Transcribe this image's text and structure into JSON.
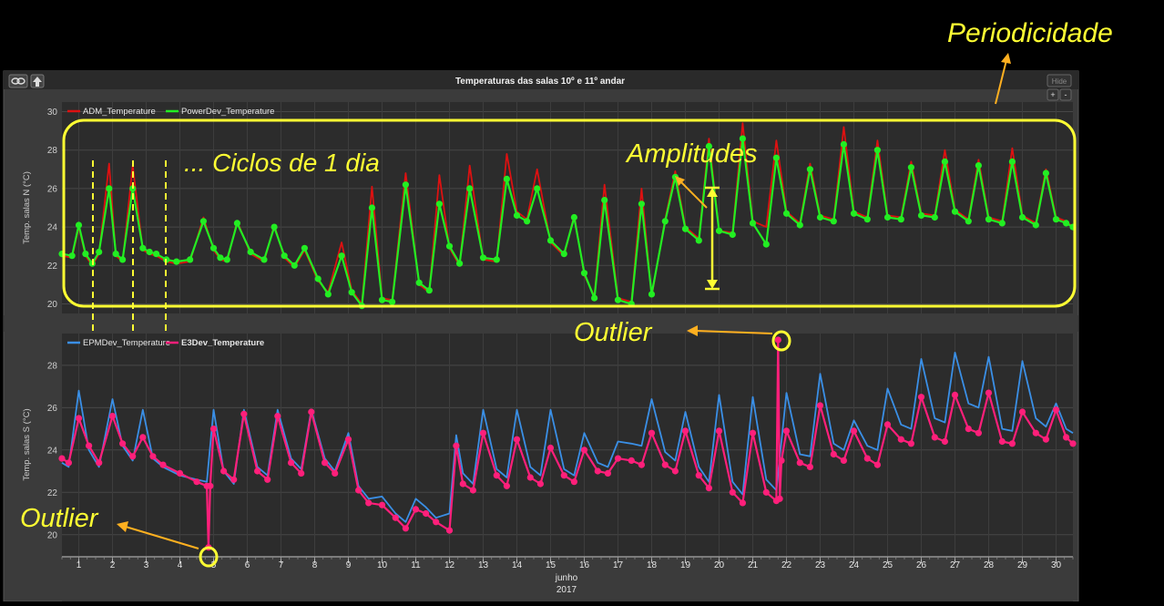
{
  "window": {
    "title": "Temperaturas das salas 10º e 11º andar",
    "hide_label": "Hide",
    "plus_label": "+",
    "minus_label": "-",
    "link_icon": "link-icon",
    "up_icon": "arrow-up-icon"
  },
  "annotations": {
    "periodicidade": "Periodicidade",
    "ciclos": "... Ciclos de 1 dia",
    "amplitudes": "Amplitudes",
    "outlier_top": "Outlier",
    "outlier_bottom": "Outlier"
  },
  "colors": {
    "annotation_text": "#ffff33",
    "annotation_arrow": "#ffb020",
    "adm": "#dd1111",
    "power": "#22ee22",
    "epm": "#3a8fe6",
    "e3": "#ff1f7a",
    "plot_bg": "#2c2c2c"
  },
  "chart_data": [
    {
      "type": "line",
      "ylabel": "Temp. salas N (°C)",
      "ylim": [
        19.5,
        30.5
      ],
      "yticks": [
        20,
        22,
        24,
        26,
        28,
        30
      ],
      "xlim": [
        0.5,
        30.5
      ],
      "grid": true,
      "legend_placement": "top-left",
      "series": [
        {
          "name": "ADM_Temperature",
          "x": [
            0.5,
            0.8,
            1,
            1.2,
            1.4,
            1.6,
            1.9,
            2.1,
            2.3,
            2.6,
            2.9,
            3.1,
            3.3,
            3.6,
            3.9,
            4.3,
            4.7,
            5,
            5.2,
            5.4,
            5.7,
            6.1,
            6.5,
            6.8,
            7.1,
            7.4,
            7.7,
            8.1,
            8.4,
            8.8,
            9.1,
            9.4,
            9.7,
            10,
            10.3,
            10.7,
            11.1,
            11.4,
            11.7,
            12,
            12.3,
            12.6,
            13,
            13.4,
            13.7,
            14,
            14.3,
            14.6,
            15,
            15.4,
            15.7,
            16,
            16.3,
            16.6,
            17,
            17.4,
            17.7,
            18,
            18.4,
            18.7,
            19,
            19.4,
            19.7,
            20,
            20.4,
            20.7,
            21,
            21.4,
            21.7,
            22,
            22.4,
            22.7,
            23,
            23.4,
            23.7,
            24,
            24.4,
            24.7,
            25,
            25.4,
            25.7,
            26,
            26.4,
            26.7,
            27,
            27.4,
            27.7,
            28,
            28.4,
            28.7,
            29,
            29.4,
            29.7,
            30,
            30.3,
            30.5
          ],
          "values": [
            22.5,
            22.4,
            24.0,
            22.5,
            22.0,
            22.6,
            27.3,
            22.5,
            22.2,
            27.2,
            22.8,
            22.6,
            22.5,
            22.2,
            22.1,
            22.2,
            24.5,
            22.8,
            22.3,
            22.2,
            24.3,
            22.6,
            22.2,
            24.1,
            22.4,
            21.9,
            22.8,
            21.2,
            20.6,
            23.2,
            20.7,
            20.0,
            26.1,
            20.3,
            20.2,
            26.8,
            21.0,
            20.6,
            26.7,
            22.9,
            22.0,
            27.2,
            22.3,
            22.2,
            27.8,
            24.8,
            24.4,
            27.0,
            23.2,
            22.5,
            24.6,
            21.5,
            20.4,
            26.2,
            20.3,
            20.1,
            26.0,
            20.4,
            24.4,
            26.9,
            24.0,
            23.4,
            28.6,
            23.8,
            23.7,
            29.4,
            24.3,
            24.0,
            28.5,
            24.8,
            24.2,
            27.3,
            24.6,
            24.4,
            29.2,
            24.8,
            24.5,
            28.5,
            24.6,
            24.5,
            27.4,
            24.7,
            24.6,
            28.0,
            24.9,
            24.4,
            27.5,
            24.5,
            24.3,
            28.1,
            24.6,
            24.2,
            27.0,
            24.5,
            24.3,
            24.0
          ]
        },
        {
          "name": "PowerDev_Temperature",
          "x": [
            0.5,
            0.8,
            1,
            1.2,
            1.4,
            1.6,
            1.9,
            2.1,
            2.3,
            2.6,
            2.9,
            3.1,
            3.3,
            3.6,
            3.9,
            4.3,
            4.7,
            5,
            5.2,
            5.4,
            5.7,
            6.1,
            6.5,
            6.8,
            7.1,
            7.4,
            7.7,
            8.1,
            8.4,
            8.8,
            9.1,
            9.4,
            9.7,
            10,
            10.3,
            10.7,
            11.1,
            11.4,
            11.7,
            12,
            12.3,
            12.6,
            13,
            13.4,
            13.7,
            14,
            14.3,
            14.6,
            15,
            15.4,
            15.7,
            16,
            16.3,
            16.6,
            17,
            17.4,
            17.7,
            18,
            18.4,
            18.7,
            19,
            19.4,
            19.7,
            20,
            20.4,
            20.7,
            21,
            21.4,
            21.7,
            22,
            22.4,
            22.7,
            23,
            23.4,
            23.7,
            24,
            24.4,
            24.7,
            25,
            25.4,
            25.7,
            26,
            26.4,
            26.7,
            27,
            27.4,
            27.7,
            28,
            28.4,
            28.7,
            29,
            29.4,
            29.7,
            30,
            30.3,
            30.5
          ],
          "values": [
            22.6,
            22.5,
            24.1,
            22.6,
            22.1,
            22.7,
            26.0,
            22.6,
            22.3,
            26.0,
            22.9,
            22.7,
            22.6,
            22.3,
            22.2,
            22.3,
            24.3,
            22.9,
            22.4,
            22.3,
            24.2,
            22.7,
            22.3,
            24.0,
            22.5,
            22.0,
            22.9,
            21.3,
            20.5,
            22.5,
            20.6,
            19.9,
            25.0,
            20.2,
            20.1,
            26.2,
            21.1,
            20.7,
            25.2,
            23.0,
            22.1,
            26.0,
            22.4,
            22.3,
            26.5,
            24.6,
            24.3,
            26.0,
            23.3,
            22.6,
            24.5,
            21.6,
            20.3,
            25.4,
            20.2,
            20.0,
            25.2,
            20.5,
            24.3,
            26.6,
            23.9,
            23.3,
            28.2,
            23.8,
            23.6,
            28.6,
            24.2,
            23.1,
            27.6,
            24.7,
            24.1,
            27.0,
            24.5,
            24.3,
            28.3,
            24.7,
            24.4,
            28.0,
            24.5,
            24.4,
            27.1,
            24.6,
            24.5,
            27.4,
            24.8,
            24.3,
            27.2,
            24.4,
            24.2,
            27.4,
            24.5,
            24.1,
            26.8,
            24.4,
            24.2,
            24.0
          ]
        }
      ]
    },
    {
      "type": "line",
      "ylabel": "Temp. salas S (°C)",
      "xlabel": "junho",
      "xlabel2": "2017",
      "ylim": [
        19,
        29.5
      ],
      "yticks": [
        20,
        22,
        24,
        26,
        28
      ],
      "xlim": [
        0.5,
        30.5
      ],
      "xticks": [
        1,
        2,
        3,
        4,
        5,
        6,
        7,
        8,
        9,
        10,
        11,
        12,
        13,
        14,
        15,
        16,
        17,
        18,
        19,
        20,
        21,
        22,
        23,
        24,
        25,
        26,
        27,
        28,
        29,
        30
      ],
      "grid": true,
      "legend_placement": "top-left",
      "series": [
        {
          "name": "EPMDev_Temperature",
          "x": [
            0.5,
            0.7,
            1,
            1.3,
            1.6,
            2,
            2.3,
            2.6,
            2.9,
            3.2,
            3.5,
            4,
            4.5,
            4.8,
            5,
            5.3,
            5.6,
            5.9,
            6.3,
            6.6,
            6.9,
            7.3,
            7.6,
            7.9,
            8.3,
            8.6,
            9,
            9.3,
            9.6,
            10,
            10.4,
            10.7,
            11,
            11.3,
            11.6,
            12,
            12.2,
            12.4,
            12.7,
            13,
            13.4,
            13.7,
            14,
            14.4,
            14.7,
            15,
            15.4,
            15.7,
            16,
            16.4,
            16.7,
            17,
            17.4,
            17.7,
            18,
            18.4,
            18.7,
            19,
            19.4,
            19.7,
            20,
            20.4,
            20.7,
            21,
            21.4,
            21.7,
            22,
            22.4,
            22.7,
            23,
            23.4,
            23.7,
            24,
            24.4,
            24.7,
            25,
            25.4,
            25.7,
            26,
            26.4,
            26.7,
            27,
            27.4,
            27.7,
            28,
            28.4,
            28.7,
            29,
            29.4,
            29.7,
            30,
            30.3,
            30.5
          ],
          "values": [
            23.4,
            23.2,
            26.8,
            24.0,
            23.2,
            26.4,
            24.2,
            23.5,
            25.9,
            23.6,
            23.2,
            22.8,
            22.6,
            22.5,
            25.9,
            23.0,
            22.4,
            25.9,
            23.2,
            22.8,
            25.9,
            23.6,
            23.1,
            25.9,
            23.6,
            23.0,
            24.8,
            22.3,
            21.7,
            21.8,
            21.0,
            20.6,
            21.7,
            21.3,
            20.8,
            21.0,
            24.7,
            22.9,
            22.4,
            25.9,
            23.1,
            22.7,
            25.9,
            23.2,
            22.8,
            25.9,
            23.1,
            22.8,
            24.8,
            23.4,
            23.2,
            24.4,
            24.3,
            24.2,
            26.4,
            23.9,
            23.5,
            25.8,
            23.2,
            22.5,
            26.6,
            22.5,
            21.9,
            26.5,
            22.6,
            22.1,
            26.7,
            23.8,
            23.7,
            27.6,
            24.3,
            24.0,
            25.4,
            24.2,
            24.0,
            26.9,
            25.2,
            25.0,
            28.3,
            25.5,
            25.3,
            28.6,
            26.2,
            26.0,
            28.4,
            25.0,
            24.9,
            28.2,
            25.5,
            25.1,
            26.2,
            25.0,
            24.8
          ]
        },
        {
          "name": "E3Dev_Temperature",
          "x": [
            0.5,
            0.7,
            1,
            1.3,
            1.6,
            2,
            2.3,
            2.6,
            2.9,
            3.2,
            3.5,
            4,
            4.5,
            4.8,
            4.85,
            4.9,
            5,
            5.3,
            5.6,
            5.9,
            6.3,
            6.6,
            6.9,
            7.3,
            7.6,
            7.9,
            8.3,
            8.6,
            9,
            9.3,
            9.6,
            10,
            10.4,
            10.7,
            11,
            11.3,
            11.6,
            12,
            12.2,
            12.4,
            12.7,
            13,
            13.4,
            13.7,
            14,
            14.4,
            14.7,
            15,
            15.4,
            15.7,
            16,
            16.4,
            16.7,
            17,
            17.4,
            17.7,
            18,
            18.4,
            18.7,
            19,
            19.4,
            19.7,
            20,
            20.4,
            20.7,
            21,
            21.4,
            21.7,
            21.75,
            21.8,
            21.85,
            22,
            22.4,
            22.7,
            23,
            23.4,
            23.7,
            24,
            24.4,
            24.7,
            25,
            25.4,
            25.7,
            26,
            26.4,
            26.7,
            27,
            27.4,
            27.7,
            28,
            28.4,
            28.7,
            29,
            29.4,
            29.7,
            30,
            30.3,
            30.5
          ],
          "values": [
            23.6,
            23.4,
            25.5,
            24.2,
            23.4,
            25.6,
            24.3,
            23.7,
            24.6,
            23.7,
            23.3,
            22.9,
            22.5,
            22.3,
            19.4,
            22.3,
            25.0,
            23.0,
            22.6,
            25.7,
            23.0,
            22.6,
            25.6,
            23.4,
            22.9,
            25.8,
            23.4,
            22.9,
            24.5,
            22.1,
            21.5,
            21.4,
            20.8,
            20.3,
            21.2,
            21.0,
            20.6,
            20.2,
            24.2,
            22.4,
            22.1,
            24.8,
            22.8,
            22.3,
            24.5,
            22.7,
            22.4,
            24.1,
            22.8,
            22.5,
            24.0,
            23.0,
            22.9,
            23.6,
            23.5,
            23.3,
            24.8,
            23.3,
            23.0,
            24.9,
            22.8,
            22.2,
            24.9,
            22.0,
            21.5,
            24.8,
            22.0,
            21.6,
            29.2,
            21.7,
            23.5,
            24.9,
            23.4,
            23.2,
            26.1,
            23.8,
            23.5,
            24.9,
            23.6,
            23.3,
            25.2,
            24.5,
            24.3,
            26.5,
            24.6,
            24.4,
            26.6,
            25.0,
            24.8,
            26.7,
            24.4,
            24.3,
            25.8,
            24.8,
            24.5,
            25.9,
            24.6,
            24.3
          ]
        }
      ]
    }
  ]
}
